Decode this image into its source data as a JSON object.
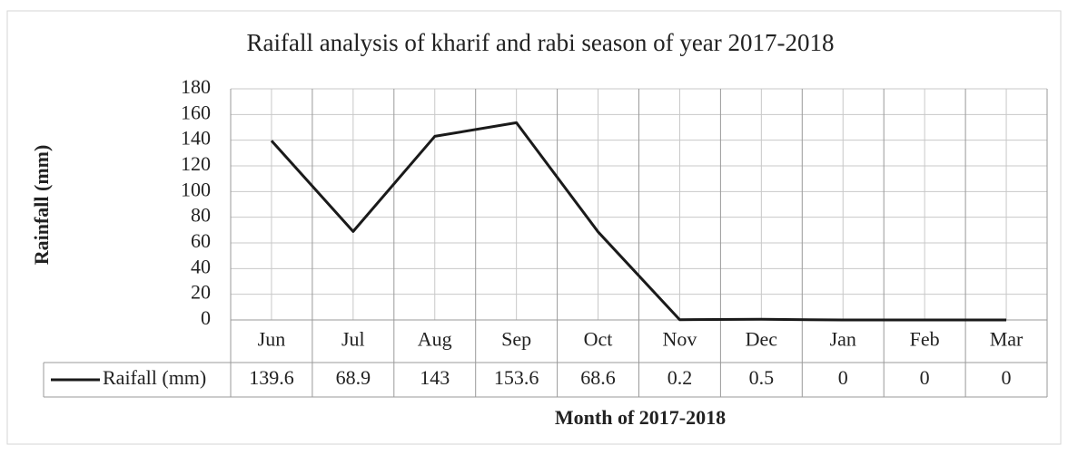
{
  "chart_data": {
    "type": "line",
    "title": "Raifall analysis of kharif and rabi season of year 2017-2018",
    "x_label": "Month of 2017-2018",
    "y_label": "Rainfall (mm)",
    "categories": [
      "Jun",
      "Jul",
      "Aug",
      "Sep",
      "Oct",
      "Nov",
      "Dec",
      "Jan",
      "Feb",
      "Mar"
    ],
    "series": [
      {
        "name": "Raifall (mm)",
        "color": "#1a1a1a",
        "values": [
          139.6,
          68.9,
          143,
          153.6,
          68.6,
          0.2,
          0.5,
          0,
          0,
          0
        ]
      }
    ],
    "ylim": [
      0,
      180
    ],
    "yticks": [
      0,
      20,
      40,
      60,
      80,
      100,
      120,
      140,
      160,
      180
    ],
    "grid": true,
    "data_table": true
  }
}
